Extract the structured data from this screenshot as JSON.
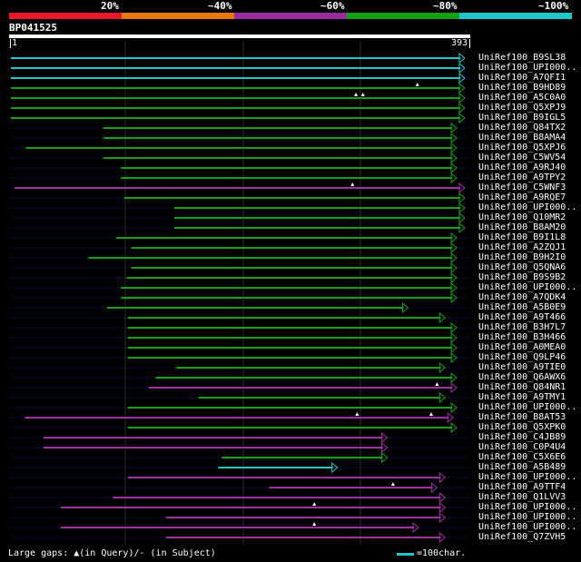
{
  "legend": {
    "segments": [
      {
        "label": "",
        "color": "#e8172b"
      },
      {
        "label": "20%",
        "color": "#e87812"
      },
      {
        "label": "~40%",
        "color": "#962d9c"
      },
      {
        "label": "~60%",
        "color": "#16a016"
      },
      {
        "label": "~80%",
        "color": "#1ec8c8"
      },
      {
        "label": "~100%",
        "color": ""
      }
    ]
  },
  "query": {
    "title": "BP041525",
    "start": "1",
    "end": "393"
  },
  "colors": {
    "cyan": "#1ec8c8",
    "green": "#16a016",
    "purple": "#a030a0",
    "track": "#0a0a3c",
    "grid": "#2a2a2a"
  },
  "hits": [
    {
      "label": "UniRef100_B9SL38",
      "color": "cyan",
      "start": 1,
      "end": 393,
      "dir": "right",
      "gaps": []
    },
    {
      "label": "UniRef100_UPI000..",
      "color": "cyan",
      "start": 1,
      "end": 393,
      "dir": "right",
      "gaps": []
    },
    {
      "label": "UniRef100_A7QFI1",
      "color": "cyan",
      "start": 1,
      "end": 393,
      "dir": "right",
      "gaps": []
    },
    {
      "label": "UniRef100_B9HD89",
      "color": "green",
      "start": 1,
      "end": 393,
      "dir": "right",
      "gaps": [
        352
      ]
    },
    {
      "label": "UniRef100_A5C0A0",
      "color": "green",
      "start": 1,
      "end": 393,
      "dir": "right",
      "gaps": [
        299,
        305
      ]
    },
    {
      "label": "UniRef100_Q5XPJ9",
      "color": "green",
      "start": 1,
      "end": 393,
      "dir": "right",
      "gaps": []
    },
    {
      "label": "UniRef100_B9IGL5",
      "color": "green",
      "start": 1,
      "end": 393,
      "dir": "right",
      "gaps": []
    },
    {
      "label": "UniRef100_Q84TX2",
      "color": "green",
      "start": 81,
      "end": 386,
      "dir": "right",
      "gaps": []
    },
    {
      "label": "UniRef100_B8AMA4",
      "color": "green",
      "start": 81,
      "end": 386,
      "dir": "right",
      "gaps": []
    },
    {
      "label": "UniRef100_Q5XPJ6",
      "color": "green",
      "start": 14,
      "end": 386,
      "dir": "right",
      "gaps": []
    },
    {
      "label": "UniRef100_C5WV54",
      "color": "green",
      "start": 81,
      "end": 386,
      "dir": "right",
      "gaps": []
    },
    {
      "label": "UniRef100_A9RJ40",
      "color": "green",
      "start": 96,
      "end": 386,
      "dir": "right",
      "gaps": []
    },
    {
      "label": "UniRef100_A9TPY2",
      "color": "green",
      "start": 96,
      "end": 386,
      "dir": "right",
      "gaps": []
    },
    {
      "label": "UniRef100_C5WNF3",
      "color": "purple",
      "start": 4,
      "end": 393,
      "dir": "right",
      "gaps": [
        296
      ]
    },
    {
      "label": "UniRef100_A9RQE7",
      "color": "green",
      "start": 99,
      "end": 393,
      "dir": "right",
      "gaps": []
    },
    {
      "label": "UniRef100_UPI000..",
      "color": "green",
      "start": 142,
      "end": 393,
      "dir": "right",
      "gaps": []
    },
    {
      "label": "UniRef100_Q10MR2",
      "color": "green",
      "start": 142,
      "end": 393,
      "dir": "right",
      "gaps": []
    },
    {
      "label": "UniRef100_B8AM20",
      "color": "green",
      "start": 142,
      "end": 393,
      "dir": "right",
      "gaps": []
    },
    {
      "label": "UniRef100_B9I1L8",
      "color": "green",
      "start": 92,
      "end": 386,
      "dir": "right",
      "gaps": []
    },
    {
      "label": "UniRef100_A2ZQJ1",
      "color": "green",
      "start": 105,
      "end": 386,
      "dir": "right",
      "gaps": []
    },
    {
      "label": "UniRef100_B9H2I0",
      "color": "green",
      "start": 68,
      "end": 386,
      "dir": "right",
      "gaps": []
    },
    {
      "label": "UniRef100_Q5QNA6",
      "color": "green",
      "start": 105,
      "end": 386,
      "dir": "right",
      "gaps": []
    },
    {
      "label": "UniRef100_B9S9B2",
      "color": "green",
      "start": 101,
      "end": 386,
      "dir": "right",
      "gaps": []
    },
    {
      "label": "UniRef100_UPI000..",
      "color": "green",
      "start": 96,
      "end": 386,
      "dir": "right",
      "gaps": []
    },
    {
      "label": "UniRef100_A7QDK4",
      "color": "green",
      "start": 96,
      "end": 386,
      "dir": "right",
      "gaps": []
    },
    {
      "label": "UniRef100_A5B0E9",
      "color": "green",
      "start": 84,
      "end": 344,
      "dir": "right",
      "gaps": []
    },
    {
      "label": "UniRef100_A9T466",
      "color": "green",
      "start": 102,
      "end": 376,
      "dir": "right",
      "gaps": []
    },
    {
      "label": "UniRef100_B3H7L7",
      "color": "green",
      "start": 102,
      "end": 386,
      "dir": "right",
      "gaps": []
    },
    {
      "label": "UniRef100_B3H466",
      "color": "green",
      "start": 102,
      "end": 386,
      "dir": "right",
      "gaps": []
    },
    {
      "label": "UniRef100_A0MEA0",
      "color": "green",
      "start": 102,
      "end": 386,
      "dir": "right",
      "gaps": []
    },
    {
      "label": "UniRef100_Q9LP46",
      "color": "green",
      "start": 102,
      "end": 386,
      "dir": "right",
      "gaps": []
    },
    {
      "label": "UniRef100_A9TIE0",
      "color": "green",
      "start": 144,
      "end": 376,
      "dir": "right",
      "gaps": []
    },
    {
      "label": "UniRef100_Q6AWX6",
      "color": "green",
      "start": 126,
      "end": 386,
      "dir": "right",
      "gaps": []
    },
    {
      "label": "UniRef100_Q84NR1",
      "color": "purple",
      "start": 120,
      "end": 386,
      "dir": "right",
      "gaps": [
        369
      ]
    },
    {
      "label": "UniRef100_A9TMY1",
      "color": "green",
      "start": 163,
      "end": 376,
      "dir": "right",
      "gaps": []
    },
    {
      "label": "UniRef100_UPI000..",
      "color": "green",
      "start": 102,
      "end": 386,
      "dir": "right",
      "gaps": []
    },
    {
      "label": "UniRef100_B8AT53",
      "color": "purple",
      "start": 13,
      "end": 383,
      "dir": "right",
      "gaps": [
        300,
        364
      ]
    },
    {
      "label": "UniRef100_Q5XPK0",
      "color": "green",
      "start": 102,
      "end": 386,
      "dir": "right",
      "gaps": []
    },
    {
      "label": "UniRef100_C4JB89",
      "color": "purple",
      "start": 29,
      "end": 326,
      "dir": "right",
      "gaps": []
    },
    {
      "label": "UniRef100_C0P4U4",
      "color": "purple",
      "start": 29,
      "end": 326,
      "dir": "right",
      "gaps": []
    },
    {
      "label": "UniRef100_C5X6E6",
      "color": "green",
      "start": 183,
      "end": 326,
      "dir": "right",
      "gaps": []
    },
    {
      "label": "UniRef100_A5B489",
      "color": "cyan",
      "start": 180,
      "end": 283,
      "dir": "right",
      "gaps": []
    },
    {
      "label": "UniRef100_UPI000..",
      "color": "purple",
      "start": 102,
      "end": 376,
      "dir": "right",
      "gaps": []
    },
    {
      "label": "UniRef100_A9TTF4",
      "color": "purple",
      "start": 224,
      "end": 369,
      "dir": "right",
      "gaps": [
        331
      ]
    },
    {
      "label": "UniRef100_Q1LVV3",
      "color": "purple",
      "start": 89,
      "end": 376,
      "dir": "right",
      "gaps": []
    },
    {
      "label": "UniRef100_UPI000..",
      "color": "purple",
      "start": 44,
      "end": 376,
      "dir": "right",
      "gaps": [
        263
      ]
    },
    {
      "label": "UniRef100_UPI000..",
      "color": "purple",
      "start": 135,
      "end": 376,
      "dir": "right",
      "gaps": []
    },
    {
      "label": "UniRef100_UPI000..",
      "color": "purple",
      "start": 44,
      "end": 353,
      "dir": "right",
      "gaps": [
        263
      ]
    },
    {
      "label": "UniRef100_Q7ZVH5",
      "color": "purple",
      "start": 135,
      "end": 376,
      "dir": "right",
      "gaps": []
    }
  ],
  "footer": {
    "gaps_label": "Large gaps: ▲(in Query)/- (in Subject)",
    "scale_label": "=100char."
  }
}
